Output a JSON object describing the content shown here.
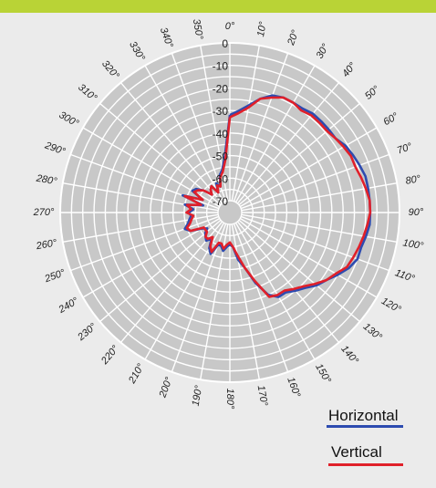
{
  "colors": {
    "top_bar": "#b9d336",
    "background": "#ebebeb",
    "grid": "#ffffff",
    "grid_fill": "#c8c8c8",
    "horizontal": "#2d4bb0",
    "vertical": "#e0202a"
  },
  "chart_data": {
    "type": "line",
    "subtype": "polar",
    "title": "",
    "angle_unit": "°",
    "angle_ticks": [
      0,
      10,
      20,
      30,
      40,
      50,
      60,
      70,
      80,
      90,
      100,
      110,
      120,
      130,
      140,
      150,
      160,
      170,
      180,
      190,
      200,
      210,
      220,
      230,
      240,
      250,
      260,
      270,
      280,
      290,
      300,
      310,
      320,
      330,
      340,
      350
    ],
    "angle_tick_labels": [
      "0°",
      "10°",
      "20°",
      "30°",
      "40°",
      "50°",
      "60°",
      "70°",
      "80°",
      "90°",
      "100°",
      "110°",
      "120°",
      "130°",
      "140°",
      "150°",
      "160°",
      "170°",
      "180°",
      "190°",
      "200°",
      "210°",
      "220°",
      "230°",
      "240°",
      "250°",
      "260°",
      "270°",
      "280°",
      "290°",
      "300°",
      "310°",
      "320°",
      "330°",
      "340°",
      "350°"
    ],
    "radial_ticks": [
      0,
      -10,
      -20,
      -30,
      -40,
      -50,
      -60,
      -70
    ],
    "radial_tick_labels": [
      "0",
      "-10",
      "-20",
      "-30",
      "-40",
      "-50",
      "-60",
      "-70"
    ],
    "rlim": [
      -70,
      0
    ],
    "theta_zero": "top",
    "theta_direction": "clockwise",
    "legend_position": "bottom-right",
    "series": [
      {
        "name": "Horizontal",
        "angles": [
          0,
          5,
          10,
          15,
          20,
          25,
          30,
          35,
          40,
          45,
          50,
          55,
          60,
          65,
          70,
          75,
          80,
          85,
          90,
          95,
          100,
          105,
          110,
          115,
          120,
          125,
          130,
          135,
          140,
          145,
          150,
          155,
          160,
          165,
          170,
          175,
          180,
          185,
          190,
          195,
          200,
          205,
          210,
          215,
          220,
          225,
          230,
          235,
          240,
          245,
          250,
          255,
          260,
          265,
          270,
          275,
          280,
          285,
          290,
          295,
          300,
          305,
          310,
          315,
          320,
          325,
          330,
          335,
          340,
          345,
          350,
          355
        ],
        "values": [
          -32,
          -30,
          -27,
          -23,
          -20,
          -19,
          -19,
          -19,
          -18,
          -18,
          -18,
          -18,
          -16,
          -15,
          -14,
          -13,
          -13,
          -13,
          -13,
          -13,
          -14,
          -15,
          -15,
          -17,
          -20,
          -23,
          -25,
          -28,
          -30,
          -32,
          -32,
          -35,
          -42,
          -50,
          -54,
          -60,
          -61,
          -60,
          -58,
          -60,
          -60,
          -55,
          -57,
          -61,
          -59,
          -60,
          -61,
          -63,
          -61,
          -56,
          -54,
          -56,
          -57,
          -58,
          -57,
          -59,
          -55,
          -63,
          -53,
          -62,
          -56,
          -57,
          -60,
          -64,
          -62,
          -61,
          -65,
          -61,
          -63,
          -58,
          -56,
          -50
        ]
      },
      {
        "name": "Vertical",
        "angles": [
          0,
          5,
          10,
          15,
          20,
          25,
          30,
          35,
          40,
          45,
          50,
          55,
          60,
          65,
          70,
          75,
          80,
          85,
          90,
          95,
          100,
          105,
          110,
          115,
          120,
          125,
          130,
          135,
          140,
          145,
          150,
          155,
          160,
          165,
          170,
          175,
          180,
          185,
          190,
          195,
          200,
          205,
          210,
          215,
          220,
          225,
          230,
          235,
          240,
          245,
          250,
          255,
          260,
          265,
          270,
          275,
          280,
          285,
          290,
          295,
          300,
          305,
          310,
          315,
          320,
          325,
          330,
          335,
          340,
          345,
          350,
          355
        ],
        "values": [
          -33,
          -31,
          -28,
          -23,
          -21,
          -19,
          -19,
          -20,
          -19,
          -19,
          -19,
          -18,
          -17,
          -16,
          -16,
          -15,
          -14,
          -13,
          -13,
          -14,
          -15,
          -16,
          -17,
          -18,
          -21,
          -23,
          -26,
          -29,
          -31,
          -33,
          -33,
          -34,
          -43,
          -50,
          -56,
          -60,
          -62,
          -61,
          -59,
          -61,
          -61,
          -56,
          -58,
          -62,
          -60,
          -60,
          -62,
          -62,
          -62,
          -56,
          -55,
          -57,
          -58,
          -59,
          -56,
          -58,
          -56,
          -62,
          -54,
          -62,
          -57,
          -58,
          -60,
          -64,
          -62,
          -61,
          -65,
          -62,
          -63,
          -59,
          -57,
          -52
        ]
      }
    ]
  }
}
